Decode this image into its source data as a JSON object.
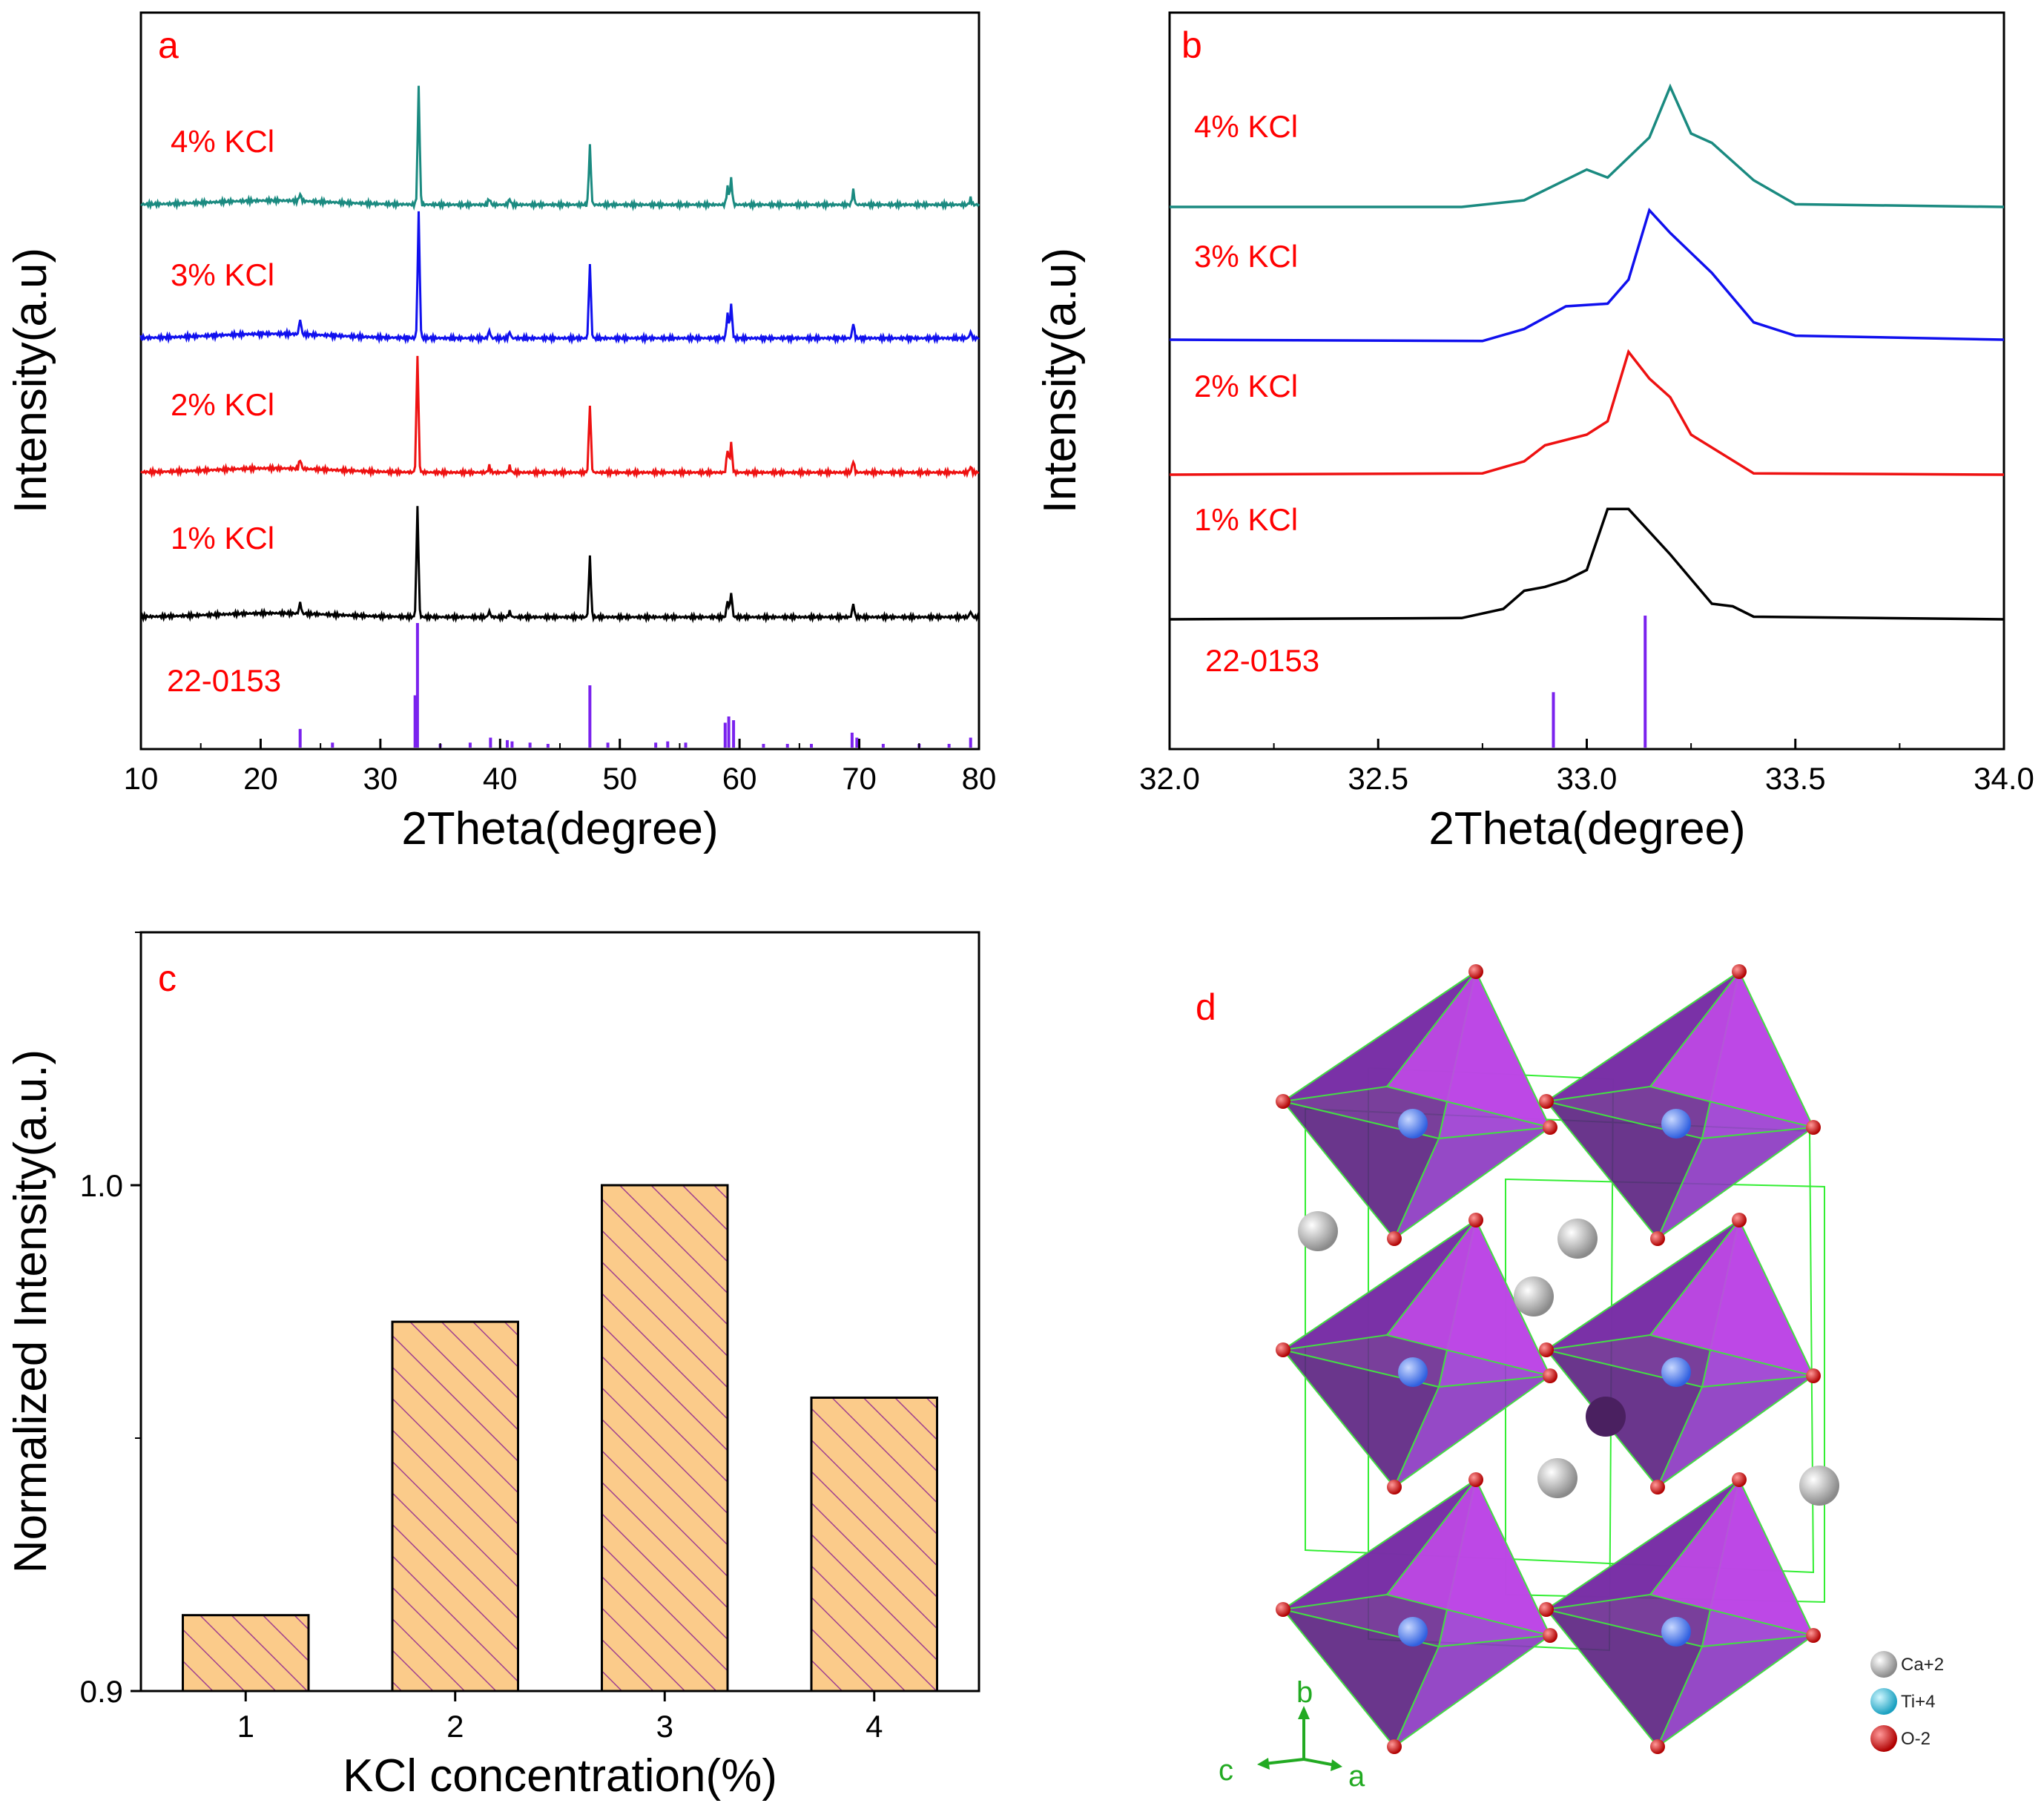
{
  "panels": {
    "a": {
      "letter": "a"
    },
    "b": {
      "letter": "b"
    },
    "c": {
      "letter": "c"
    },
    "d": {
      "letter": "d"
    }
  },
  "chart_data": [
    {
      "id": "a",
      "type": "line",
      "xlabel": "2Theta(degree)",
      "ylabel": "Intensity(a.u)",
      "xlim": [
        10,
        80
      ],
      "xticks": [
        10,
        20,
        30,
        40,
        50,
        60,
        70,
        80
      ],
      "series": [
        {
          "name": "4% KCl",
          "color": "#1a8a80",
          "peaks": [
            [
              23.3,
              0.06
            ],
            [
              33.2,
              1.0
            ],
            [
              39.1,
              0.05
            ],
            [
              40.8,
              0.05
            ],
            [
              47.5,
              0.5
            ],
            [
              59.0,
              0.15
            ],
            [
              59.3,
              0.22
            ],
            [
              69.5,
              0.12
            ],
            [
              79.3,
              0.05
            ]
          ]
        },
        {
          "name": "3% KCl",
          "color": "#1010ee",
          "peaks": [
            [
              23.3,
              0.12
            ],
            [
              33.2,
              1.0
            ],
            [
              39.1,
              0.06
            ],
            [
              40.8,
              0.05
            ],
            [
              47.5,
              0.6
            ],
            [
              59.0,
              0.2
            ],
            [
              59.3,
              0.27
            ],
            [
              69.5,
              0.12
            ],
            [
              79.3,
              0.05
            ]
          ]
        },
        {
          "name": "2% KCl",
          "color": "#ee1111",
          "peaks": [
            [
              23.3,
              0.08
            ],
            [
              33.1,
              1.0
            ],
            [
              39.1,
              0.05
            ],
            [
              40.8,
              0.05
            ],
            [
              47.5,
              0.58
            ],
            [
              59.0,
              0.2
            ],
            [
              59.3,
              0.25
            ],
            [
              69.5,
              0.1
            ],
            [
              79.3,
              0.05
            ]
          ]
        },
        {
          "name": "1% KCl",
          "color": "#000000",
          "peaks": [
            [
              23.3,
              0.1
            ],
            [
              33.1,
              1.0
            ],
            [
              39.1,
              0.05
            ],
            [
              40.8,
              0.05
            ],
            [
              47.5,
              0.55
            ],
            [
              59.0,
              0.15
            ],
            [
              59.3,
              0.22
            ],
            [
              69.5,
              0.12
            ],
            [
              79.3,
              0.05
            ]
          ]
        }
      ],
      "reference": {
        "name": "22-0153",
        "color": "#7a22ee",
        "sticks": [
          [
            23.3,
            0.15
          ],
          [
            26.0,
            0.04
          ],
          [
            32.9,
            0.42
          ],
          [
            33.1,
            1.0
          ],
          [
            35.0,
            0.03
          ],
          [
            37.5,
            0.04
          ],
          [
            39.2,
            0.08
          ],
          [
            40.6,
            0.06
          ],
          [
            41.0,
            0.05
          ],
          [
            42.5,
            0.04
          ],
          [
            44.0,
            0.03
          ],
          [
            47.5,
            0.5
          ],
          [
            49.0,
            0.04
          ],
          [
            53.0,
            0.04
          ],
          [
            54.0,
            0.05
          ],
          [
            55.5,
            0.04
          ],
          [
            58.8,
            0.2
          ],
          [
            59.1,
            0.25
          ],
          [
            59.5,
            0.22
          ],
          [
            62.0,
            0.03
          ],
          [
            64.0,
            0.03
          ],
          [
            66.0,
            0.03
          ],
          [
            69.4,
            0.12
          ],
          [
            69.8,
            0.08
          ],
          [
            72.0,
            0.03
          ],
          [
            75.0,
            0.03
          ],
          [
            77.5,
            0.03
          ],
          [
            79.3,
            0.08
          ]
        ]
      }
    },
    {
      "id": "b",
      "type": "line",
      "xlabel": "2Theta(degree)",
      "ylabel": "Intensity(a.u)",
      "xlim": [
        32.0,
        34.0
      ],
      "xticks": [
        "32.0",
        "32.5",
        "33.0",
        "33.5",
        "34.0"
      ],
      "series": [
        {
          "name": "4% KCl",
          "color": "#1a8a80",
          "points": [
            [
              32.0,
              0
            ],
            [
              32.7,
              0
            ],
            [
              32.85,
              0.05
            ],
            [
              33.0,
              0.28
            ],
            [
              33.05,
              0.22
            ],
            [
              33.15,
              0.52
            ],
            [
              33.2,
              0.9
            ],
            [
              33.25,
              0.55
            ],
            [
              33.3,
              0.48
            ],
            [
              33.4,
              0.2
            ],
            [
              33.5,
              0.02
            ],
            [
              34.0,
              0
            ]
          ]
        },
        {
          "name": "3% KCl",
          "color": "#1010ee",
          "points": [
            [
              32.0,
              0
            ],
            [
              32.75,
              -0.01
            ],
            [
              32.85,
              0.08
            ],
            [
              32.95,
              0.25
            ],
            [
              33.05,
              0.27
            ],
            [
              33.1,
              0.45
            ],
            [
              33.15,
              0.97
            ],
            [
              33.2,
              0.8
            ],
            [
              33.3,
              0.5
            ],
            [
              33.4,
              0.13
            ],
            [
              33.5,
              0.03
            ],
            [
              34.0,
              0.0
            ]
          ]
        },
        {
          "name": "2% KCl",
          "color": "#ee1111",
          "points": [
            [
              32.0,
              0
            ],
            [
              32.75,
              0.01
            ],
            [
              32.85,
              0.1
            ],
            [
              32.9,
              0.22
            ],
            [
              33.0,
              0.3
            ],
            [
              33.05,
              0.4
            ],
            [
              33.1,
              0.92
            ],
            [
              33.15,
              0.72
            ],
            [
              33.2,
              0.58
            ],
            [
              33.25,
              0.3
            ],
            [
              33.4,
              0.01
            ],
            [
              34.0,
              0
            ]
          ]
        },
        {
          "name": "1% KCl",
          "color": "#000000",
          "points": [
            [
              32.0,
              0
            ],
            [
              32.7,
              0.01
            ],
            [
              32.8,
              0.08
            ],
            [
              32.85,
              0.22
            ],
            [
              32.9,
              0.25
            ],
            [
              32.95,
              0.3
            ],
            [
              33.0,
              0.38
            ],
            [
              33.05,
              0.85
            ],
            [
              33.1,
              0.85
            ],
            [
              33.2,
              0.5
            ],
            [
              33.3,
              0.12
            ],
            [
              33.35,
              0.1
            ],
            [
              33.4,
              0.02
            ],
            [
              34.0,
              0
            ]
          ]
        }
      ],
      "reference": {
        "name": "22-0153",
        "color": "#7a22ee",
        "sticks": [
          [
            32.92,
            0.42
          ],
          [
            33.14,
            1.0
          ]
        ]
      }
    },
    {
      "id": "c",
      "type": "bar",
      "xlabel": "KCl concentration(%)",
      "ylabel": "Normalized Intensity(a.u.)",
      "ylim": [
        0.9,
        1.05
      ],
      "yticks": [
        "0.9",
        "1.0"
      ],
      "categories": [
        "1",
        "2",
        "3",
        "4"
      ],
      "values": [
        0.915,
        0.973,
        1.0,
        0.958
      ],
      "bar_color": "#fbcb8a",
      "hatch_color": "#a0408f"
    }
  ],
  "structure": {
    "legend": [
      {
        "label": "Ca+2",
        "color": "#d8d8d8"
      },
      {
        "label": "Ti+4",
        "color": "#22c8e0"
      },
      {
        "label": "O-2",
        "color": "#e81010"
      }
    ],
    "axes": {
      "b": "b",
      "c": "c",
      "a": "a"
    }
  }
}
